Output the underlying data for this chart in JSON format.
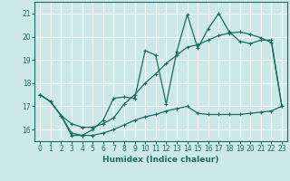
{
  "xlabel": "Humidex (Indice chaleur)",
  "background_color": "#cde8e8",
  "grid_color": "#ffffff",
  "line_color": "#1a6b60",
  "xlim": [
    -0.5,
    23.5
  ],
  "ylim": [
    15.5,
    21.5
  ],
  "yticks": [
    16,
    17,
    18,
    19,
    20,
    21
  ],
  "xticks": [
    0,
    1,
    2,
    3,
    4,
    5,
    6,
    7,
    8,
    9,
    10,
    11,
    12,
    13,
    14,
    15,
    16,
    17,
    18,
    19,
    20,
    21,
    22,
    23
  ],
  "series": [
    {
      "x": [
        0,
        1,
        2,
        3,
        4,
        5,
        6,
        7,
        8,
        9,
        10,
        11,
        12,
        13,
        14,
        15,
        16,
        17,
        18,
        19,
        20,
        21,
        22,
        23
      ],
      "y": [
        17.5,
        17.2,
        16.6,
        15.75,
        15.75,
        16.0,
        16.4,
        17.35,
        17.4,
        17.35,
        19.4,
        19.2,
        17.1,
        19.35,
        20.95,
        19.5,
        20.35,
        21.0,
        20.2,
        19.8,
        19.7,
        19.85,
        19.85,
        17.0
      ]
    },
    {
      "x": [
        0,
        1,
        2,
        3,
        4,
        5,
        6,
        7,
        8,
        9,
        10,
        11,
        12,
        13,
        14,
        15,
        16,
        17,
        18,
        19,
        20,
        21,
        22,
        23
      ],
      "y": [
        17.5,
        17.2,
        16.6,
        16.25,
        16.1,
        16.1,
        16.25,
        16.5,
        17.1,
        17.5,
        18.0,
        18.4,
        18.85,
        19.2,
        19.55,
        19.65,
        19.85,
        20.05,
        20.15,
        20.2,
        20.1,
        19.95,
        19.75,
        17.0
      ]
    },
    {
      "x": [
        0,
        1,
        2,
        3,
        4,
        5,
        6,
        7,
        8,
        9,
        10,
        11,
        12,
        13,
        14,
        15,
        16,
        17,
        18,
        19,
        20,
        21,
        22,
        23
      ],
      "y": [
        17.5,
        17.2,
        16.6,
        15.85,
        15.75,
        15.75,
        15.85,
        16.0,
        16.2,
        16.4,
        16.55,
        16.65,
        16.8,
        16.9,
        17.0,
        16.7,
        16.65,
        16.65,
        16.65,
        16.65,
        16.7,
        16.75,
        16.8,
        17.0
      ]
    }
  ]
}
